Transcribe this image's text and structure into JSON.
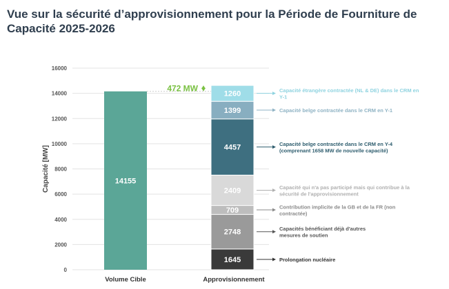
{
  "chart_data": {
    "type": "bar",
    "title": "Vue sur la sécurité d’approvisionnement pour la Période  de Fourniture de Capacité 2025-2026",
    "ylabel": "Capacité [MW]",
    "xlabel": "",
    "ylim": [
      0,
      16000
    ],
    "yticks": [
      0,
      2000,
      4000,
      6000,
      8000,
      10000,
      12000,
      14000,
      16000
    ],
    "grid": true,
    "categories": [
      "Volume Cible",
      "Approvisionnement"
    ],
    "target": {
      "category": "Volume Cible",
      "value": 14155,
      "label": "14155",
      "color": "#5ba697"
    },
    "stack": [
      {
        "value": 1645,
        "label": "1645",
        "color": "#3a3a3a",
        "annotation": [
          "Prolongation nucléaire"
        ],
        "annotation_color": "#333333"
      },
      {
        "value": 2748,
        "label": "2748",
        "color": "#9a9a9a",
        "annotation": [
          "Capacités bénéficiant déjà d'autres",
          "mesures de soutien"
        ],
        "annotation_color": "#555555"
      },
      {
        "value": 709,
        "label": "709",
        "color": "#bdbdbd",
        "annotation": [
          "Contribution implicite de la GB et de la FR (non",
          "contractée)"
        ],
        "annotation_color": "#8a8a8a"
      },
      {
        "value": 2409,
        "label": "2409",
        "color": "#d9d9d9",
        "annotation": [
          "Capacité qui n'a pas participé mais qui contribue à la",
          "sécurité de l'approvisionnement"
        ],
        "annotation_color": "#b0b0b0"
      },
      {
        "value": 4457,
        "label": "4457",
        "color": "#3e6f80",
        "annotation": [
          "Capacité belge contractée dans le CRM en Y-4",
          "(comprenant 1658 MW de nouvelle capacité)"
        ],
        "annotation_color": "#2e5d6e"
      },
      {
        "value": 1399,
        "label": "1399",
        "color": "#88aec0",
        "annotation": [
          "Capacité belge contractée dans le CRM en Y-1"
        ],
        "annotation_color": "#8fb3c4"
      },
      {
        "value": 1260,
        "label": "1260",
        "color": "#9fdde8",
        "annotation": [
          "Capacité étrangère contractée (NL & DE) dans le CRM en",
          "Y-1"
        ],
        "annotation_color": "#8fd3e0"
      }
    ],
    "surplus": {
      "label": "472 MW",
      "color": "#7ac142"
    }
  }
}
